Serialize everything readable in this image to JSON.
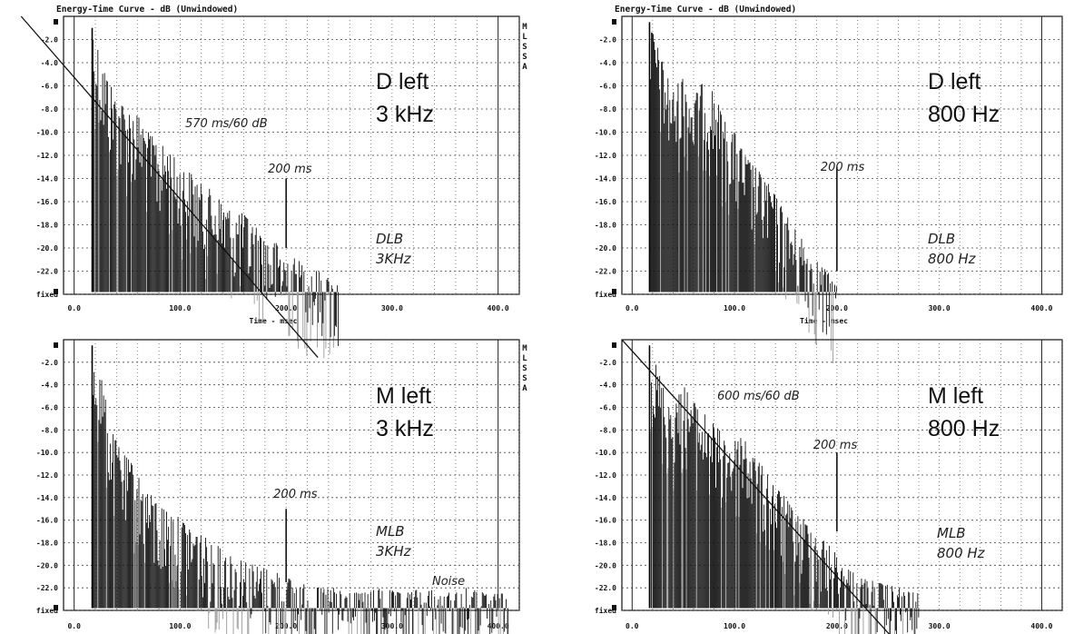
{
  "chart_data": [
    {
      "type": "line",
      "title": "Energy-Time Curve - dB (Unwindowed)",
      "xlabel": "Time - msec",
      "ylabel": "",
      "xlim": [
        -10,
        420
      ],
      "ylim": [
        -24,
        0
      ],
      "x_ticks": [
        "0.0",
        "100.0",
        "200.0",
        "300.0",
        "400.0"
      ],
      "y_ticks": [
        "-2.0",
        "-4.0",
        "-6.0",
        "-8.0",
        "-10.0",
        "-12.0",
        "-14.0",
        "-16.0",
        "-18.0",
        "-20.0",
        "-22.0",
        "fixed"
      ],
      "side_letters": [
        "M",
        "L",
        "S",
        "S",
        "A"
      ],
      "grid": true,
      "label_line1": "D left",
      "label_line2": "3 kHz",
      "hand_top": "DLB",
      "hand_bottom": "3KHz",
      "marker_label": "200 ms",
      "decay_label": "570 ms/60 dB",
      "noise_label": "",
      "decay_line": {
        "x": [
          -50,
          200
        ],
        "y": [
          0,
          -26.3
        ]
      },
      "marker": {
        "x": 200,
        "y_top": -14.0,
        "y_bottom": -20.0
      },
      "series": [
        {
          "x": [
            17,
            30,
            40,
            50,
            60,
            70,
            80,
            90,
            100,
            110,
            120,
            130,
            140,
            150,
            160,
            170,
            180,
            190,
            200,
            210,
            220,
            230,
            240,
            250
          ],
          "values": [
            -1.0,
            -5.0,
            -7.0,
            -8.0,
            -8.5,
            -10.0,
            -11.0,
            -11.5,
            -13.0,
            -13.5,
            -14.5,
            -15.0,
            -16.0,
            -17.0,
            -17.0,
            -18.0,
            -19.0,
            -19.5,
            -20.5,
            -21.0,
            -21.5,
            -22.0,
            -22.5,
            -23.0
          ]
        }
      ]
    },
    {
      "type": "line",
      "title": "Energy-Time Curve - dB (Unwindowed)",
      "xlabel": "Time - msec",
      "ylabel": "",
      "xlim": [
        -10,
        420
      ],
      "ylim": [
        -24,
        0
      ],
      "x_ticks": [
        "0.0",
        "100.0",
        "200.0",
        "300.0",
        "400.0"
      ],
      "y_ticks": [
        "-2.0",
        "-4.0",
        "-6.0",
        "-8.0",
        "-10.0",
        "-12.0",
        "-14.0",
        "-16.0",
        "-18.0",
        "-20.0",
        "-22.0",
        "fixed"
      ],
      "side_letters": [],
      "grid": true,
      "label_line1": "D left",
      "label_line2": "800 Hz",
      "hand_top": "DLB",
      "hand_bottom": "800 Hz",
      "marker_label": "200 ms",
      "decay_label": "",
      "noise_label": "",
      "decay_line": null,
      "marker": {
        "x": 200,
        "y_top": -13.0,
        "y_bottom": -22.0
      },
      "series": [
        {
          "x": [
            17,
            30,
            40,
            50,
            60,
            70,
            80,
            90,
            100,
            110,
            120,
            130,
            140,
            150,
            160,
            170,
            180,
            190,
            200
          ],
          "values": [
            -0.5,
            -4.0,
            -6.5,
            -5.0,
            -7.0,
            -5.5,
            -6.5,
            -9.0,
            -10.0,
            -12.0,
            -13.0,
            -14.0,
            -15.5,
            -17.0,
            -18.5,
            -19.5,
            -21.0,
            -22.0,
            -23.0
          ]
        }
      ]
    },
    {
      "type": "line",
      "title": "",
      "xlabel": "",
      "ylabel": "",
      "xlim": [
        -10,
        420
      ],
      "ylim": [
        -24,
        0
      ],
      "x_ticks": [
        "0.0",
        "100.0",
        "200.0",
        "300.0",
        "400.0"
      ],
      "y_ticks": [
        "-2.0",
        "-4.0",
        "-6.0",
        "-8.0",
        "-10.0",
        "-12.0",
        "-14.0",
        "-16.0",
        "-18.0",
        "-20.0",
        "-22.0",
        "fixed"
      ],
      "side_letters": [
        "M",
        "L",
        "S",
        "S",
        "A"
      ],
      "grid": true,
      "label_line1": "M left",
      "label_line2": "3 kHz",
      "hand_top": "MLB",
      "hand_bottom": "3KHz",
      "marker_label": "200 ms",
      "decay_label": "",
      "noise_label": "Noise",
      "decay_line": null,
      "marker": {
        "x": 200,
        "y_top": -15.0,
        "y_bottom": -21.5
      },
      "series": [
        {
          "x": [
            17,
            25,
            35,
            45,
            55,
            65,
            75,
            85,
            95,
            110,
            130,
            150,
            170,
            190,
            210,
            230,
            250,
            270,
            290,
            310,
            330,
            350,
            370,
            390,
            410
          ],
          "values": [
            -0.5,
            -3.0,
            -8.0,
            -10.0,
            -11.0,
            -13.0,
            -14.0,
            -15.0,
            -15.5,
            -16.5,
            -18.0,
            -19.0,
            -20.0,
            -20.5,
            -21.5,
            -22.0,
            -22.0,
            -22.5,
            -22.0,
            -22.5,
            -22.0,
            -22.5,
            -22.0,
            -22.5,
            -22.5
          ]
        }
      ]
    },
    {
      "type": "line",
      "title": "",
      "xlabel": "",
      "ylabel": "",
      "xlim": [
        -10,
        420
      ],
      "ylim": [
        -24,
        0
      ],
      "x_ticks": [
        "0.0",
        "100.0",
        "200.0",
        "300.0",
        "400.0"
      ],
      "y_ticks": [
        "-2.0",
        "-4.0",
        "-6.0",
        "-8.0",
        "-10.0",
        "-12.0",
        "-14.0",
        "-16.0",
        "-18.0",
        "-20.0",
        "-22.0",
        "fixed"
      ],
      "side_letters": [],
      "grid": true,
      "label_line1": "M left",
      "label_line2": "800 Hz",
      "hand_top": "MLB",
      "hand_bottom": "800 Hz",
      "marker_label": "200 ms",
      "decay_label": "600 ms/60 dB",
      "noise_label": "",
      "decay_line": {
        "x": [
          -10,
          240
        ],
        "y": [
          0,
          -25.0
        ]
      },
      "marker": {
        "x": 200,
        "y_top": -10.0,
        "y_bottom": -17.0
      },
      "series": [
        {
          "x": [
            17,
            30,
            40,
            50,
            60,
            70,
            80,
            90,
            100,
            110,
            120,
            130,
            140,
            150,
            160,
            170,
            180,
            190,
            200,
            210,
            220,
            240,
            260,
            280
          ],
          "values": [
            -0.5,
            -4.0,
            -6.0,
            -4.0,
            -5.5,
            -6.5,
            -7.5,
            -8.5,
            -9.0,
            -8.0,
            -10.5,
            -11.5,
            -13.0,
            -14.0,
            -15.5,
            -16.0,
            -17.0,
            -18.0,
            -19.0,
            -20.0,
            -21.0,
            -21.5,
            -22.0,
            -22.5
          ]
        }
      ]
    }
  ]
}
